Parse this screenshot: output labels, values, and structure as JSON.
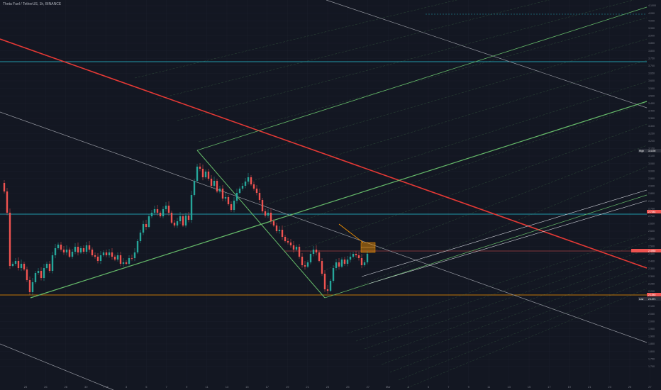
{
  "header": {
    "title": "Theta Fuel / TetherUS, 1h, BINANCE"
  },
  "price_axis": {
    "ticks": [
      "4.1000",
      "4.050",
      "4.000",
      "3.950",
      "3.900",
      "3.850",
      "3.800",
      "3.750",
      "3.700",
      "3.650",
      "3.600",
      "3.550",
      "3.500",
      "3.450",
      "3.400",
      "3.350",
      "3.300",
      "3.250",
      "3.200",
      "3.150",
      "3.100",
      "3.050",
      "3.000",
      "2.950",
      "2.900",
      "2.850",
      "2.800",
      "2.750",
      "2.700",
      "2.650",
      "2.600",
      "2.550",
      "2.500",
      "2.450",
      "2.400",
      "2.350",
      "2.300",
      "2.250",
      "2.200",
      "2.150",
      "2.100",
      "2.050",
      "2.000",
      "1.950",
      "1.900",
      "1.850",
      "1.800",
      "1.750",
      "1.700"
    ],
    "labels": {
      "high": {
        "prefix": "High",
        "value": "3.4190",
        "color": "#2a2e39"
      },
      "upper_line": {
        "value": "2.7444",
        "color": "#ef5350"
      },
      "current": {
        "value": "2.4950",
        "color": "#ef5350"
      },
      "support": {
        "value": "2.1540",
        "color": "#ef5350"
      },
      "low": {
        "prefix": "Low",
        "value": "2.1371",
        "color": "#2a2e39"
      }
    }
  },
  "time_axis": {
    "ticks": [
      "25",
      "26",
      "28",
      "30",
      "Feb",
      "3",
      "5",
      "7",
      "9",
      "11",
      "13",
      "15",
      "17",
      "19",
      "21",
      "23",
      "25",
      "27",
      "Mar",
      "3",
      "5",
      "7",
      "9",
      "11",
      "13",
      "15",
      "17",
      "19",
      "21",
      "23",
      "25",
      "27"
    ]
  },
  "colors": {
    "background": "#131722",
    "grid": "#1e222d",
    "up_candle": "#26a69a",
    "down_candle": "#ef5350",
    "red_trend": "#e53935",
    "green_trend": "#66bb6a",
    "cyan_level": "#26c6da",
    "orange_level": "#ff9800",
    "gray_line": "#9598a1"
  }
}
